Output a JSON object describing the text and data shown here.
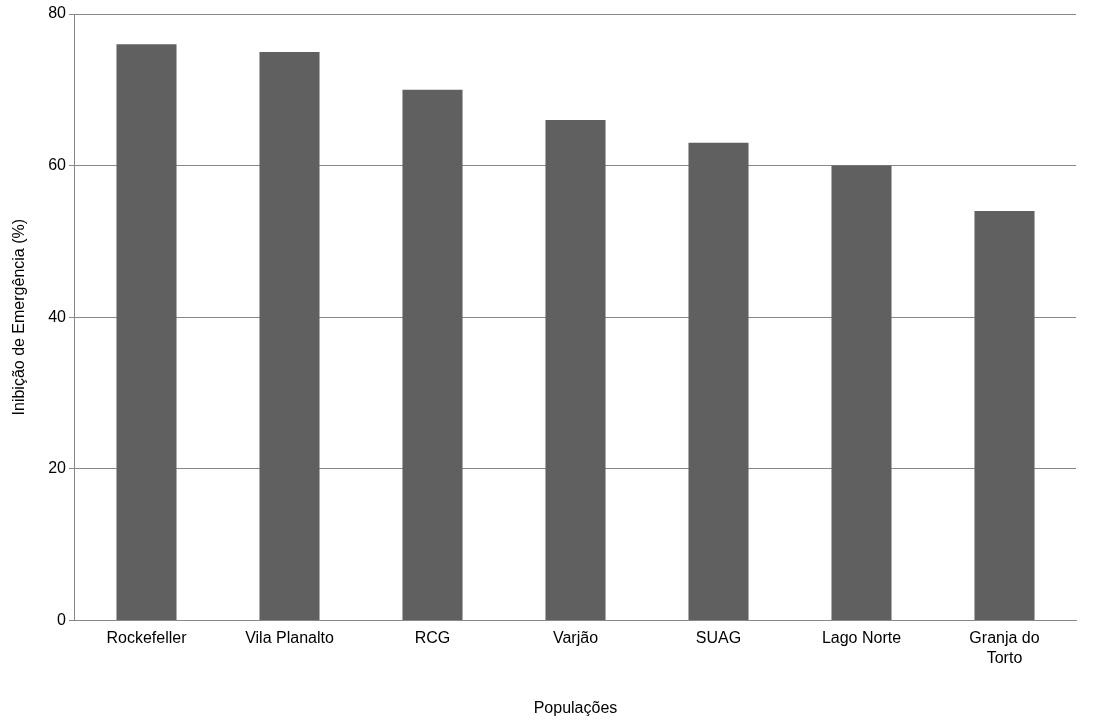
{
  "chart_data": {
    "type": "bar",
    "xlabel": "Populações",
    "ylabel": "Inibição de Emergência (%)",
    "categories": [
      "Rockefeller",
      "Vila Planalto",
      "RCG",
      "Varjão",
      "SUAG",
      "Lago Norte",
      "Granja do Torto"
    ],
    "values": [
      76,
      75,
      70,
      66,
      63,
      60,
      54
    ],
    "color": "#606060",
    "ylim": [
      0,
      80
    ],
    "yticks": [
      0,
      20,
      40,
      60,
      80
    ],
    "grid": "y",
    "legend": false
  }
}
